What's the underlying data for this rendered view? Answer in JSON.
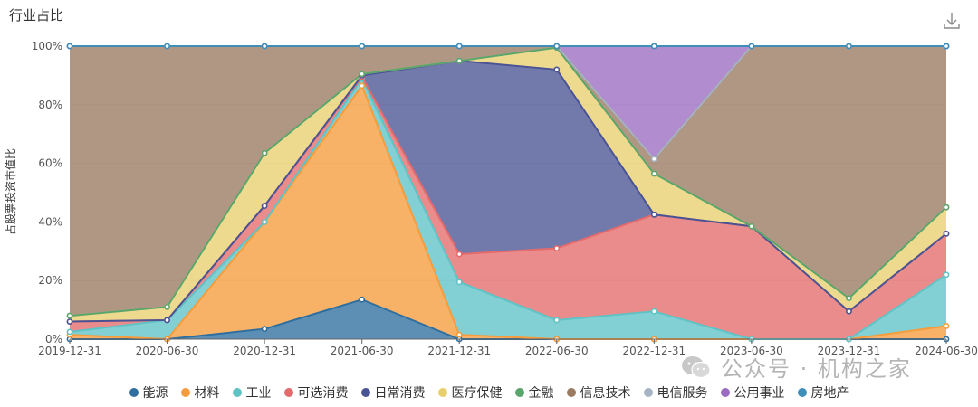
{
  "title": "行业占比",
  "download_icon": "download-icon",
  "watermark": "公众号 · 机构之家",
  "chart_data": {
    "type": "area",
    "stacked": true,
    "title": "行业占比",
    "ylabel": "占股票投资市值比",
    "xlabel": "",
    "ylim": [
      0,
      100
    ],
    "y_ticks": [
      "0%",
      "20%",
      "40%",
      "60%",
      "80%",
      "100%"
    ],
    "categories": [
      "2019-12-31",
      "2020-06-30",
      "2020-12-31",
      "2021-06-30",
      "2021-12-31",
      "2022-06-30",
      "2022-12-31",
      "2023-06-30",
      "2023-12-31",
      "2024-06-30"
    ],
    "legend_position": "bottom",
    "series": [
      {
        "name": "能源",
        "color": "#2f6f9f",
        "values": [
          0,
          0,
          3.5,
          13.5,
          0,
          0,
          0,
          0,
          0,
          0
        ]
      },
      {
        "name": "材料",
        "color": "#f59c3c",
        "values": [
          1.5,
          0,
          36.5,
          73,
          1.5,
          0,
          0,
          0,
          0,
          4.5
        ]
      },
      {
        "name": "工业",
        "color": "#5fc3c6",
        "values": [
          1,
          6.5,
          0,
          2.5,
          18,
          6.5,
          9.5,
          0,
          0,
          17.5
        ]
      },
      {
        "name": "可选消费",
        "color": "#e46b6b",
        "values": [
          3.5,
          0,
          5.5,
          0.5,
          9.5,
          24.5,
          33,
          38.5,
          9.5,
          14
        ]
      },
      {
        "name": "日常消费",
        "color": "#4a5495",
        "values": [
          0,
          0,
          0,
          0.5,
          66,
          61,
          0,
          0,
          0,
          0
        ]
      },
      {
        "name": "医疗保健",
        "color": "#e8cf6e",
        "values": [
          2,
          4.5,
          18,
          0.5,
          0,
          7.5,
          14,
          0,
          4.5,
          9
        ]
      },
      {
        "name": "金融",
        "color": "#5aa46e",
        "values": [
          0,
          0,
          0,
          0,
          0,
          0,
          0,
          0,
          0,
          0
        ]
      },
      {
        "name": "信息技术",
        "color": "#9a7a60",
        "values": [
          92,
          89,
          36.5,
          9.5,
          5,
          0.5,
          5,
          61.5,
          86,
          55
        ]
      },
      {
        "name": "电信服务",
        "color": "#a6b3c3",
        "values": [
          0,
          0,
          0,
          0,
          0,
          0,
          0,
          0,
          0,
          0
        ]
      },
      {
        "name": "公用事业",
        "color": "#9b6cc1",
        "values": [
          0,
          0,
          0,
          0,
          0,
          0,
          38.5,
          0,
          0,
          0
        ]
      },
      {
        "name": "房地产",
        "color": "#3f8eb8",
        "values": [
          0,
          0,
          0,
          0,
          0,
          0,
          0,
          0,
          0,
          0
        ]
      }
    ]
  }
}
